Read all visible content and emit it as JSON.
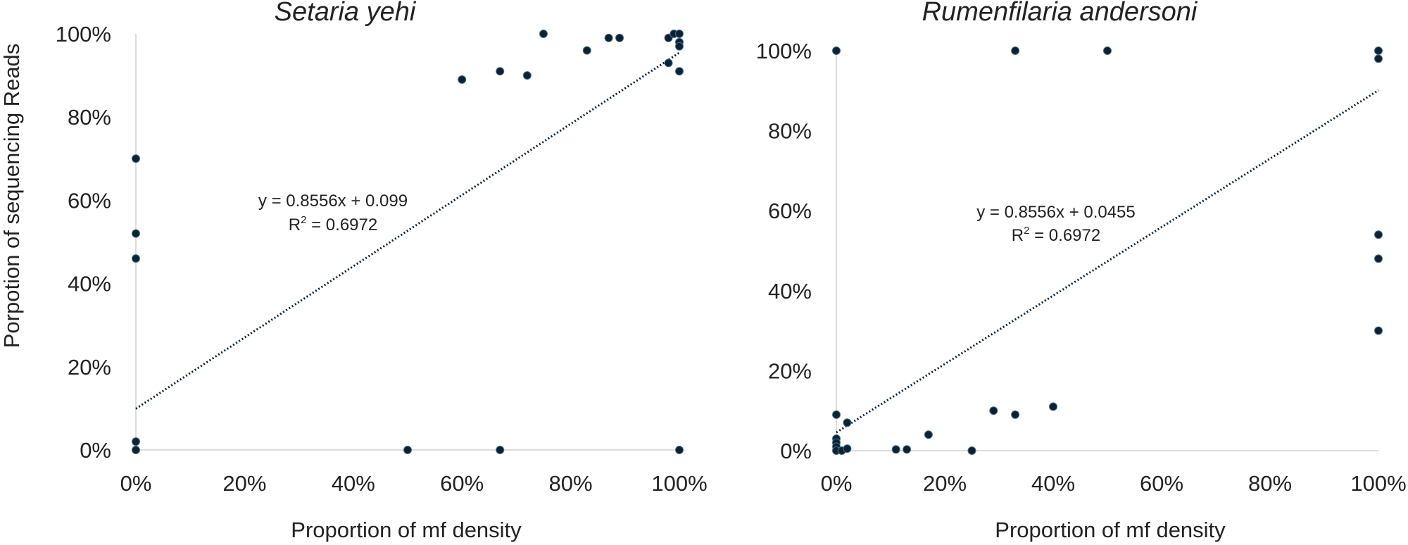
{
  "chart_data": [
    {
      "type": "scatter",
      "title": "Setaria yehi",
      "xlabel": "Proportion of mf density",
      "ylabel": "Porpotion of sequencing Reads",
      "xlim": [
        0,
        100
      ],
      "ylim": [
        0,
        100
      ],
      "x_ticks": [
        "0%",
        "20%",
        "40%",
        "60%",
        "80%",
        "100%"
      ],
      "y_ticks": [
        "0%",
        "20%",
        "40%",
        "60%",
        "80%",
        "100%"
      ],
      "grid": false,
      "legend": "none",
      "marker_color": "#0b2233",
      "trendline": {
        "slope": 0.8556,
        "intercept": 0.099,
        "style": "dotted"
      },
      "equation": "y = 0.8556x + 0.099",
      "r2_prefix": "R",
      "r2_exp": "2",
      "r2_value": " = 0.6972",
      "points": [
        {
          "x": 0,
          "y": 70
        },
        {
          "x": 0,
          "y": 52
        },
        {
          "x": 0,
          "y": 46
        },
        {
          "x": 0,
          "y": 2
        },
        {
          "x": 0,
          "y": 0
        },
        {
          "x": 50,
          "y": 0
        },
        {
          "x": 67,
          "y": 0
        },
        {
          "x": 100,
          "y": 0
        },
        {
          "x": 60,
          "y": 89
        },
        {
          "x": 67,
          "y": 91
        },
        {
          "x": 72,
          "y": 90
        },
        {
          "x": 75,
          "y": 100
        },
        {
          "x": 83,
          "y": 96
        },
        {
          "x": 87,
          "y": 99
        },
        {
          "x": 89,
          "y": 99
        },
        {
          "x": 98,
          "y": 99
        },
        {
          "x": 99,
          "y": 100
        },
        {
          "x": 100,
          "y": 100
        },
        {
          "x": 100,
          "y": 98
        },
        {
          "x": 100,
          "y": 97
        },
        {
          "x": 98,
          "y": 93
        },
        {
          "x": 100,
          "y": 91
        }
      ]
    },
    {
      "type": "scatter",
      "title": "Rumenfilaria andersoni",
      "xlabel": "Proportion of mf density",
      "ylabel": "",
      "xlim": [
        0,
        100
      ],
      "ylim": [
        0,
        100
      ],
      "x_ticks": [
        "0%",
        "20%",
        "40%",
        "60%",
        "80%",
        "100%"
      ],
      "y_ticks": [
        "0%",
        "20%",
        "40%",
        "60%",
        "80%",
        "100%"
      ],
      "grid": false,
      "legend": "none",
      "marker_color": "#0b2233",
      "trendline": {
        "slope": 0.8556,
        "intercept": 0.0455,
        "style": "dotted"
      },
      "equation": "y = 0.8556x + 0.0455",
      "r2_prefix": "R",
      "r2_exp": "2",
      "r2_value": " = 0.6972",
      "points": [
        {
          "x": 0,
          "y": 100
        },
        {
          "x": 0,
          "y": 9
        },
        {
          "x": 0,
          "y": 3
        },
        {
          "x": 0,
          "y": 2
        },
        {
          "x": 0,
          "y": 1
        },
        {
          "x": 0,
          "y": 0
        },
        {
          "x": 1,
          "y": 0
        },
        {
          "x": 2,
          "y": 7
        },
        {
          "x": 2,
          "y": 0.5
        },
        {
          "x": 11,
          "y": 0.3
        },
        {
          "x": 13,
          "y": 0.3
        },
        {
          "x": 17,
          "y": 4
        },
        {
          "x": 25,
          "y": 0
        },
        {
          "x": 29,
          "y": 10
        },
        {
          "x": 33,
          "y": 9
        },
        {
          "x": 40,
          "y": 11
        },
        {
          "x": 33,
          "y": 100
        },
        {
          "x": 50,
          "y": 100
        },
        {
          "x": 100,
          "y": 100
        },
        {
          "x": 100,
          "y": 98
        },
        {
          "x": 100,
          "y": 54
        },
        {
          "x": 100,
          "y": 48
        },
        {
          "x": 100,
          "y": 30
        }
      ]
    }
  ]
}
